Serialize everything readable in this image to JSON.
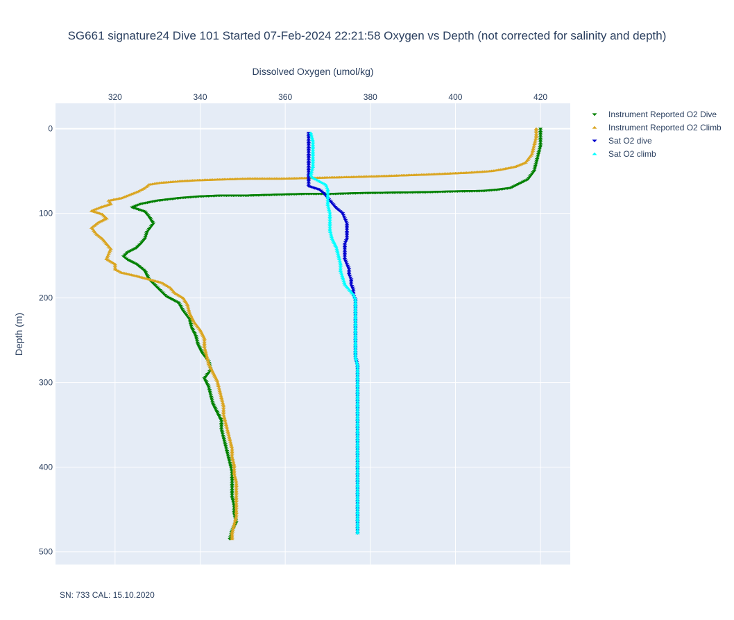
{
  "chart_data": {
    "type": "scatter",
    "title": "SG661 signature24 Dive 101 Started 07-Feb-2024 22:21:58  Oxygen vs Depth (not corrected for salinity and depth)",
    "xlabel": "Dissolved Oxygen (umol/kg)",
    "ylabel": "Depth (m)",
    "xlim": [
      306,
      427
    ],
    "ylim": [
      515,
      -30
    ],
    "x_axis_position": "top",
    "y_reversed": true,
    "grid": true,
    "legend_position": "right",
    "x_ticks": [
      "320",
      "340",
      "360",
      "380",
      "400",
      "420"
    ],
    "y_ticks": [
      "0",
      "100",
      "200",
      "300",
      "400",
      "500"
    ],
    "series": [
      {
        "name": "Instrument Reported O2 Dive",
        "marker": "triangle-down",
        "color": "#008000",
        "points": [
          [
            420,
            0
          ],
          [
            420,
            10
          ],
          [
            420,
            20
          ],
          [
            419.5,
            30
          ],
          [
            419,
            40
          ],
          [
            418.5,
            50
          ],
          [
            417,
            60
          ],
          [
            413,
            70
          ],
          [
            410,
            72
          ],
          [
            406.5,
            73.5
          ],
          [
            400.5,
            74
          ],
          [
            393,
            75
          ],
          [
            386,
            75.5
          ],
          [
            378.5,
            76
          ],
          [
            371,
            77
          ],
          [
            365,
            77
          ],
          [
            357.5,
            78
          ],
          [
            351,
            79
          ],
          [
            345,
            79
          ],
          [
            340,
            80
          ],
          [
            335,
            82
          ],
          [
            330,
            85
          ],
          [
            326,
            89
          ],
          [
            324,
            93
          ],
          [
            327,
            98
          ],
          [
            328,
            104
          ],
          [
            329,
            112
          ],
          [
            327.5,
            122
          ],
          [
            327,
            130
          ],
          [
            326,
            136
          ],
          [
            325,
            141
          ],
          [
            323,
            146
          ],
          [
            322,
            151
          ],
          [
            323,
            155
          ],
          [
            325,
            160
          ],
          [
            327,
            168
          ],
          [
            328,
            178
          ],
          [
            330,
            188
          ],
          [
            332,
            198
          ],
          [
            335,
            206
          ],
          [
            336,
            215
          ],
          [
            337.5,
            225
          ],
          [
            338,
            235
          ],
          [
            339,
            245
          ],
          [
            339.5,
            255
          ],
          [
            340.5,
            265
          ],
          [
            342,
            275
          ],
          [
            342.5,
            285
          ],
          [
            341,
            295
          ],
          [
            342,
            305
          ],
          [
            342.5,
            315
          ],
          [
            343,
            325
          ],
          [
            344,
            335
          ],
          [
            345,
            345
          ],
          [
            345,
            355
          ],
          [
            345.5,
            365
          ],
          [
            346,
            375
          ],
          [
            346.5,
            385
          ],
          [
            347,
            395
          ],
          [
            347.5,
            405
          ],
          [
            347.5,
            415
          ],
          [
            347.5,
            425
          ],
          [
            347.5,
            435
          ],
          [
            348,
            445
          ],
          [
            348,
            455
          ],
          [
            348.5,
            465
          ],
          [
            347.5,
            475
          ],
          [
            347,
            485
          ]
        ]
      },
      {
        "name": "Instrument Reported O2 Climb",
        "marker": "triangle-up",
        "color": "#daa520",
        "points": [
          [
            419,
            0
          ],
          [
            419,
            10
          ],
          [
            418.5,
            20
          ],
          [
            418,
            30
          ],
          [
            416.5,
            40
          ],
          [
            414,
            45
          ],
          [
            411,
            48
          ],
          [
            408.5,
            50
          ],
          [
            406,
            51
          ],
          [
            403,
            52
          ],
          [
            398.5,
            53
          ],
          [
            394,
            54
          ],
          [
            388.5,
            55
          ],
          [
            383,
            56
          ],
          [
            376,
            57
          ],
          [
            368,
            58
          ],
          [
            359.5,
            59
          ],
          [
            351.5,
            59
          ],
          [
            344.5,
            60
          ],
          [
            339,
            61
          ],
          [
            335.5,
            62
          ],
          [
            333,
            63
          ],
          [
            330.5,
            64
          ],
          [
            328,
            66
          ],
          [
            327,
            70
          ],
          [
            325.5,
            74
          ],
          [
            323.5,
            78
          ],
          [
            321.5,
            82
          ],
          [
            318.5,
            85
          ],
          [
            319,
            89
          ],
          [
            316.5,
            93
          ],
          [
            314.5,
            97
          ],
          [
            317,
            101
          ],
          [
            318,
            106
          ],
          [
            316,
            111
          ],
          [
            314.5,
            117
          ],
          [
            315.5,
            124
          ],
          [
            317,
            130
          ],
          [
            318,
            136
          ],
          [
            319,
            142
          ],
          [
            318.5,
            148
          ],
          [
            318,
            154
          ],
          [
            320,
            160
          ],
          [
            320,
            166
          ],
          [
            321.5,
            170
          ],
          [
            325,
            174
          ],
          [
            328,
            178
          ],
          [
            331,
            182
          ],
          [
            333,
            188
          ],
          [
            334,
            194
          ],
          [
            336,
            200
          ],
          [
            337,
            208
          ],
          [
            337.5,
            218
          ],
          [
            338.5,
            228
          ],
          [
            340,
            238
          ],
          [
            341,
            248
          ],
          [
            341,
            258
          ],
          [
            341.5,
            268
          ],
          [
            342,
            278
          ],
          [
            343,
            288
          ],
          [
            344,
            298
          ],
          [
            344.5,
            308
          ],
          [
            345,
            318
          ],
          [
            345.5,
            328
          ],
          [
            345.5,
            338
          ],
          [
            346,
            348
          ],
          [
            346.5,
            358
          ],
          [
            347,
            368
          ],
          [
            347.5,
            378
          ],
          [
            347.5,
            388
          ],
          [
            348,
            398
          ],
          [
            348,
            408
          ],
          [
            348.5,
            418
          ],
          [
            348.5,
            428
          ],
          [
            348.5,
            438
          ],
          [
            348.5,
            448
          ],
          [
            348.5,
            458
          ],
          [
            348,
            468
          ],
          [
            347.5,
            478
          ],
          [
            347.5,
            485
          ]
        ]
      },
      {
        "name": "Sat O2 dive",
        "marker": "triangle-down",
        "color": "#0000cd",
        "points": [
          [
            365.5,
            5
          ],
          [
            365.5,
            15
          ],
          [
            365.5,
            25
          ],
          [
            365.5,
            35
          ],
          [
            365.5,
            45
          ],
          [
            365.5,
            55
          ],
          [
            365.5,
            62
          ],
          [
            365.5,
            68
          ],
          [
            368,
            72
          ],
          [
            369,
            76
          ],
          [
            370,
            82
          ],
          [
            371,
            88
          ],
          [
            372,
            94
          ],
          [
            373.5,
            100
          ],
          [
            374,
            106
          ],
          [
            374.5,
            112
          ],
          [
            374.5,
            118
          ],
          [
            374.5,
            124
          ],
          [
            374.5,
            130
          ],
          [
            374,
            136
          ],
          [
            374,
            142
          ],
          [
            374,
            148
          ],
          [
            374,
            154
          ],
          [
            374.5,
            160
          ],
          [
            375,
            166
          ],
          [
            375,
            172
          ],
          [
            375.5,
            178
          ],
          [
            375.5,
            184
          ],
          [
            376,
            190
          ],
          [
            376,
            196
          ],
          [
            376.5,
            202
          ],
          [
            376.5,
            210
          ],
          [
            376.5,
            220
          ],
          [
            376.5,
            230
          ],
          [
            376.5,
            240
          ],
          [
            376.5,
            250
          ],
          [
            376.5,
            260
          ],
          [
            376.5,
            270
          ],
          [
            377,
            280
          ],
          [
            377,
            290
          ],
          [
            377,
            300
          ],
          [
            377,
            310
          ],
          [
            377,
            320
          ],
          [
            377,
            330
          ],
          [
            377,
            340
          ],
          [
            377,
            350
          ],
          [
            377,
            360
          ],
          [
            377,
            370
          ],
          [
            377,
            380
          ],
          [
            377,
            390
          ],
          [
            377,
            400
          ],
          [
            377,
            410
          ],
          [
            377,
            420
          ],
          [
            377,
            430
          ],
          [
            377,
            440
          ],
          [
            377,
            450
          ],
          [
            377,
            460
          ],
          [
            377,
            470
          ],
          [
            377,
            478
          ]
        ]
      },
      {
        "name": "Sat O2 climb",
        "marker": "triangle-up",
        "color": "#00ffff",
        "points": [
          [
            366,
            5
          ],
          [
            366.5,
            15
          ],
          [
            366.5,
            25
          ],
          [
            366.5,
            35
          ],
          [
            366.5,
            45
          ],
          [
            366,
            55
          ],
          [
            366.5,
            58
          ],
          [
            368,
            62
          ],
          [
            369.5,
            66
          ],
          [
            370,
            72
          ],
          [
            370,
            80
          ],
          [
            370,
            90
          ],
          [
            370.5,
            100
          ],
          [
            370.5,
            110
          ],
          [
            370.5,
            120
          ],
          [
            371,
            130
          ],
          [
            372,
            140
          ],
          [
            372.5,
            150
          ],
          [
            373,
            160
          ],
          [
            373,
            168
          ],
          [
            373.5,
            176
          ],
          [
            374,
            184
          ],
          [
            375,
            190
          ],
          [
            376,
            196
          ],
          [
            376.5,
            202
          ],
          [
            376.5,
            210
          ],
          [
            376.5,
            220
          ],
          [
            376.5,
            230
          ],
          [
            376.5,
            240
          ],
          [
            376.5,
            250
          ],
          [
            376.5,
            260
          ],
          [
            376.5,
            270
          ],
          [
            377,
            280
          ],
          [
            377,
            290
          ],
          [
            377,
            300
          ],
          [
            377,
            310
          ],
          [
            377,
            320
          ],
          [
            377,
            330
          ],
          [
            377,
            340
          ],
          [
            377,
            350
          ],
          [
            377,
            360
          ],
          [
            377,
            370
          ],
          [
            377,
            380
          ],
          [
            377,
            390
          ],
          [
            377,
            400
          ],
          [
            377,
            410
          ],
          [
            377,
            420
          ],
          [
            377,
            430
          ],
          [
            377,
            440
          ],
          [
            377,
            450
          ],
          [
            377,
            460
          ],
          [
            377,
            470
          ],
          [
            377,
            478
          ]
        ]
      }
    ],
    "annotations": [
      "SN: 733  CAL: 15.10.2020"
    ]
  },
  "colors": {
    "plot_background": "#e5ecf6",
    "grid": "#ffffff",
    "text": "#2a3f5f"
  }
}
